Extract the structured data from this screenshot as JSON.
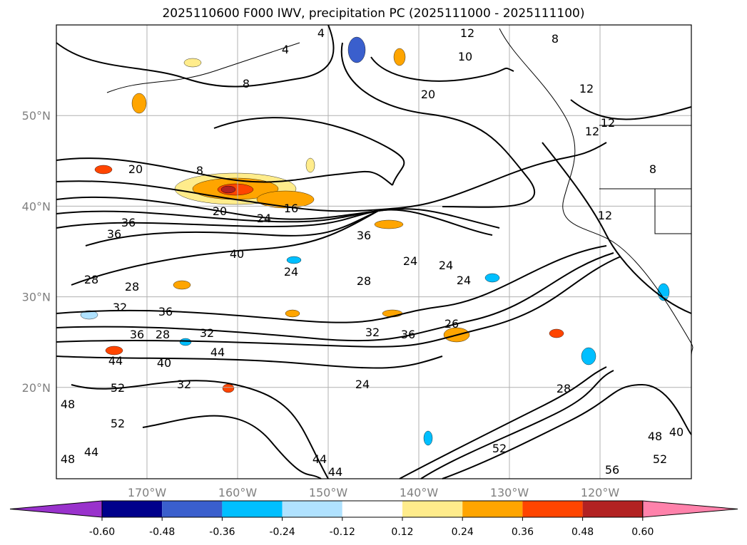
{
  "title": "2025110600 F000 IWV, precipitation PC (2025111000 - 2025111100)",
  "map": {
    "lat_labels": [
      "50°N",
      "40°N",
      "30°N",
      "20°N"
    ],
    "lon_labels": [
      "170°W",
      "160°W",
      "150°W",
      "140°W",
      "130°W",
      "120°W"
    ],
    "contour_labels": [
      "4",
      "4",
      "8",
      "8",
      "10",
      "12",
      "12",
      "12",
      "20",
      "8",
      "12",
      "20",
      "16",
      "24",
      "36",
      "36",
      "20",
      "40",
      "36",
      "24",
      "24",
      "24",
      "24",
      "28",
      "28",
      "28",
      "32",
      "36",
      "32",
      "36",
      "28",
      "32",
      "44",
      "40",
      "44",
      "52",
      "48",
      "52",
      "48",
      "44",
      "36",
      "32",
      "26",
      "28",
      "24",
      "52",
      "56",
      "52",
      "48",
      "40",
      "44",
      "44",
      "12",
      "8"
    ],
    "colors": {
      "frame": "#000000",
      "grid": "#b0b0b0",
      "tick_text": "#808080"
    }
  },
  "colorbar": {
    "ticks": [
      "-0.60",
      "-0.48",
      "-0.36",
      "-0.24",
      "-0.12",
      "0.12",
      "0.24",
      "0.36",
      "0.48",
      "0.60"
    ],
    "colors": [
      "#9932CC",
      "#00008B",
      "#3A5FCD",
      "#00BFFF",
      "#B0E2FF",
      "#FFFFFF",
      "#FFEC8B",
      "#FFA500",
      "#FF4500",
      "#B22222",
      "#FF82AB"
    ]
  }
}
